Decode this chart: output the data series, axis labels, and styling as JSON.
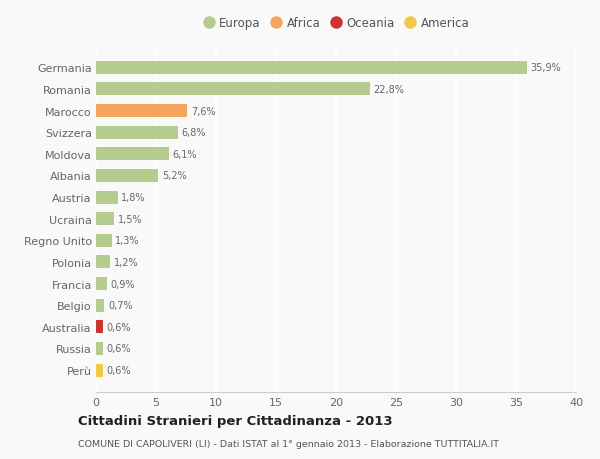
{
  "countries": [
    "Germania",
    "Romania",
    "Marocco",
    "Svizzera",
    "Moldova",
    "Albania",
    "Austria",
    "Ucraina",
    "Regno Unito",
    "Polonia",
    "Francia",
    "Belgio",
    "Australia",
    "Russia",
    "Perù"
  ],
  "values": [
    35.9,
    22.8,
    7.6,
    6.8,
    6.1,
    5.2,
    1.8,
    1.5,
    1.3,
    1.2,
    0.9,
    0.7,
    0.6,
    0.6,
    0.6
  ],
  "labels": [
    "35,9%",
    "22,8%",
    "7,6%",
    "6,8%",
    "6,1%",
    "5,2%",
    "1,8%",
    "1,5%",
    "1,3%",
    "1,2%",
    "0,9%",
    "0,7%",
    "0,6%",
    "0,6%",
    "0,6%"
  ],
  "continents": [
    "Europa",
    "Europa",
    "Africa",
    "Europa",
    "Europa",
    "Europa",
    "Europa",
    "Europa",
    "Europa",
    "Europa",
    "Europa",
    "Europa",
    "Oceania",
    "Europa",
    "America"
  ],
  "colors": {
    "Europa": "#b5cc8e",
    "Africa": "#f4a560",
    "Oceania": "#cc3333",
    "America": "#f0c84a"
  },
  "legend_order": [
    "Europa",
    "Africa",
    "Oceania",
    "America"
  ],
  "title": "Cittadini Stranieri per Cittadinanza - 2013",
  "subtitle": "COMUNE DI CAPOLIVERI (LI) - Dati ISTAT al 1° gennaio 2013 - Elaborazione TUTTITALIA.IT",
  "xlim": [
    0,
    40
  ],
  "xticks": [
    0,
    5,
    10,
    15,
    20,
    25,
    30,
    35,
    40
  ],
  "background_color": "#f9f9f9",
  "grid_color": "#ffffff",
  "bar_height": 0.6
}
